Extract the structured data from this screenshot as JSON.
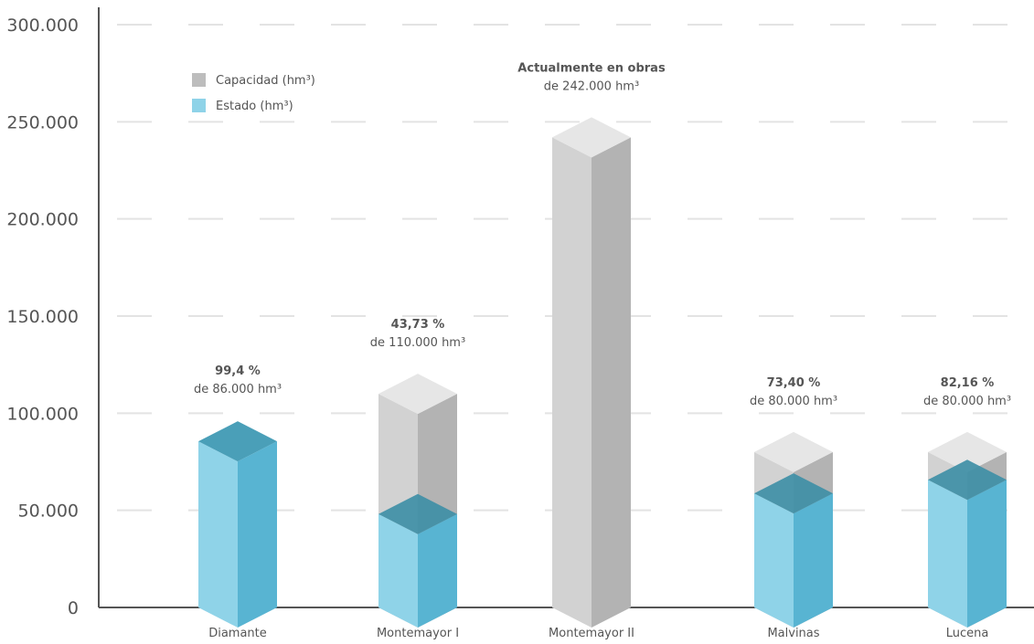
{
  "chart_data": {
    "type": "bar",
    "title": "",
    "xlabel": "",
    "ylabel": "",
    "ylim": [
      0,
      300000
    ],
    "y_ticks": [
      {
        "value": 0,
        "label": "0"
      },
      {
        "value": 50000,
        "label": "50.000"
      },
      {
        "value": 100000,
        "label": "100.000"
      },
      {
        "value": 150000,
        "label": "150.000"
      },
      {
        "value": 200000,
        "label": "200.000"
      },
      {
        "value": 250000,
        "label": "250.000"
      },
      {
        "value": 300000,
        "label": "300.000"
      }
    ],
    "grid": true,
    "legend_position": "top-left",
    "categories": [
      "Diamante",
      "Montemayor I",
      "Montemayor II",
      "Malvinas",
      "Lucena"
    ],
    "legend": [
      {
        "label": "Capacidad (hm³)",
        "color": "#bdbdbd"
      },
      {
        "label": "Estado (hm³)",
        "color": "#8fd3e8"
      }
    ],
    "series": [
      {
        "name": "Capacidad (hm³)",
        "values": [
          86000,
          110000,
          242000,
          80000,
          80000
        ]
      },
      {
        "name": "Estado (hm³)",
        "values": [
          85500,
          48100,
          0,
          58700,
          65700
        ]
      }
    ],
    "annotations": [
      {
        "category": "Diamante",
        "line1": "99,4 %",
        "line2": "de 86.000 hm³"
      },
      {
        "category": "Montemayor I",
        "line1": "43,73 %",
        "line2": "de 110.000 hm³"
      },
      {
        "category": "Montemayor II",
        "line1": "Actualmente en obras",
        "line2": "de 242.000 hm³"
      },
      {
        "category": "Malvinas",
        "line1": "73,40 %",
        "line2": "de 80.000 hm³"
      },
      {
        "category": "Lucena",
        "line1": "82,16 %",
        "line2": "de 80.000 hm³"
      }
    ]
  },
  "colors": {
    "axis": "#555555",
    "grid": "#e3e3e3",
    "text": "#555555",
    "capacity_front": "#d2d2d2",
    "capacity_side": "#b3b3b3",
    "capacity_top": "#e6e6e6",
    "state_front": "#8fd3e8",
    "state_side": "#58b4d2",
    "state_top": "#4a9fb8",
    "state_top_overlay": "#3f8fa6"
  }
}
